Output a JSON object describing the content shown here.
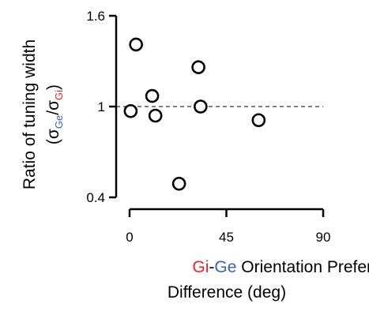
{
  "chart_data": {
    "type": "scatter",
    "xlabel": {
      "line1_parts": [
        "Gi",
        "-",
        "Ge",
        " Orientation Preference"
      ],
      "line2": "Difference (deg)"
    },
    "ylabel": {
      "line1": "Ratio of tuning width",
      "open_paren": "(",
      "sigma": "σ",
      "sub_ge": "Ge",
      "slash": "/",
      "sub_gi": "Gi",
      "close_paren": ")"
    },
    "xlim": [
      0,
      90
    ],
    "ylim": [
      0.4,
      1.6
    ],
    "x_ticks": [
      0,
      45,
      90
    ],
    "x_tick_labels": [
      "0",
      "45",
      "90"
    ],
    "y_ticks": [
      0.4,
      1.0,
      1.6
    ],
    "y_tick_labels": [
      "0.4",
      "1",
      "1.6"
    ],
    "reference_line": {
      "y": 1.0,
      "style": "dashed"
    },
    "points": [
      {
        "x": 3,
        "y": 1.41
      },
      {
        "x": 0.5,
        "y": 0.97
      },
      {
        "x": 10.5,
        "y": 1.07
      },
      {
        "x": 12,
        "y": 0.94
      },
      {
        "x": 23,
        "y": 0.49
      },
      {
        "x": 32,
        "y": 1.26
      },
      {
        "x": 33,
        "y": 1.0
      },
      {
        "x": 60,
        "y": 0.91
      }
    ],
    "marker": "open-circle",
    "colors": {
      "gi": "#e8232a",
      "ge": "#3a5fbf",
      "axis": "#000000"
    }
  }
}
